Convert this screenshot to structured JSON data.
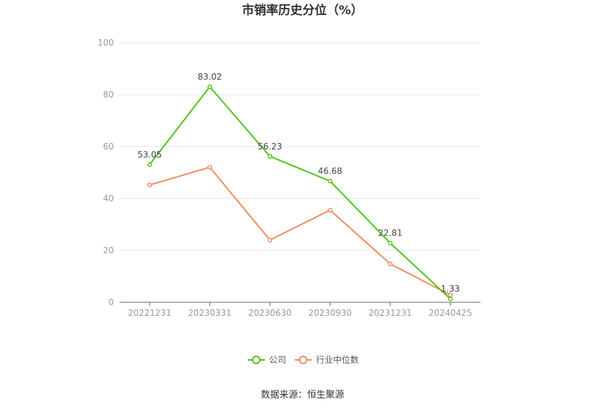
{
  "chart_data": {
    "type": "line",
    "title": "市销率历史分位（%）",
    "categories": [
      "20221231",
      "20230331",
      "20230630",
      "20230930",
      "20231231",
      "20240425"
    ],
    "ylim": [
      0,
      100
    ],
    "yticks": [
      "0",
      "20",
      "40",
      "60",
      "80",
      "100"
    ],
    "grid": true,
    "legend_position": "bottom",
    "series": [
      {
        "name": "公司",
        "color": "#52c41a",
        "values": [
          53.05,
          83.02,
          56.23,
          46.68,
          22.81,
          1.33
        ],
        "labels": [
          "53.05",
          "83.02",
          "56.23",
          "46.68",
          "22.81",
          "1.33"
        ]
      },
      {
        "name": "行业中位数",
        "color": "#f08c60",
        "values": [
          45.2,
          52.0,
          24.0,
          35.5,
          14.8,
          2.8
        ]
      }
    ]
  },
  "source": "数据来源：恒生聚源"
}
